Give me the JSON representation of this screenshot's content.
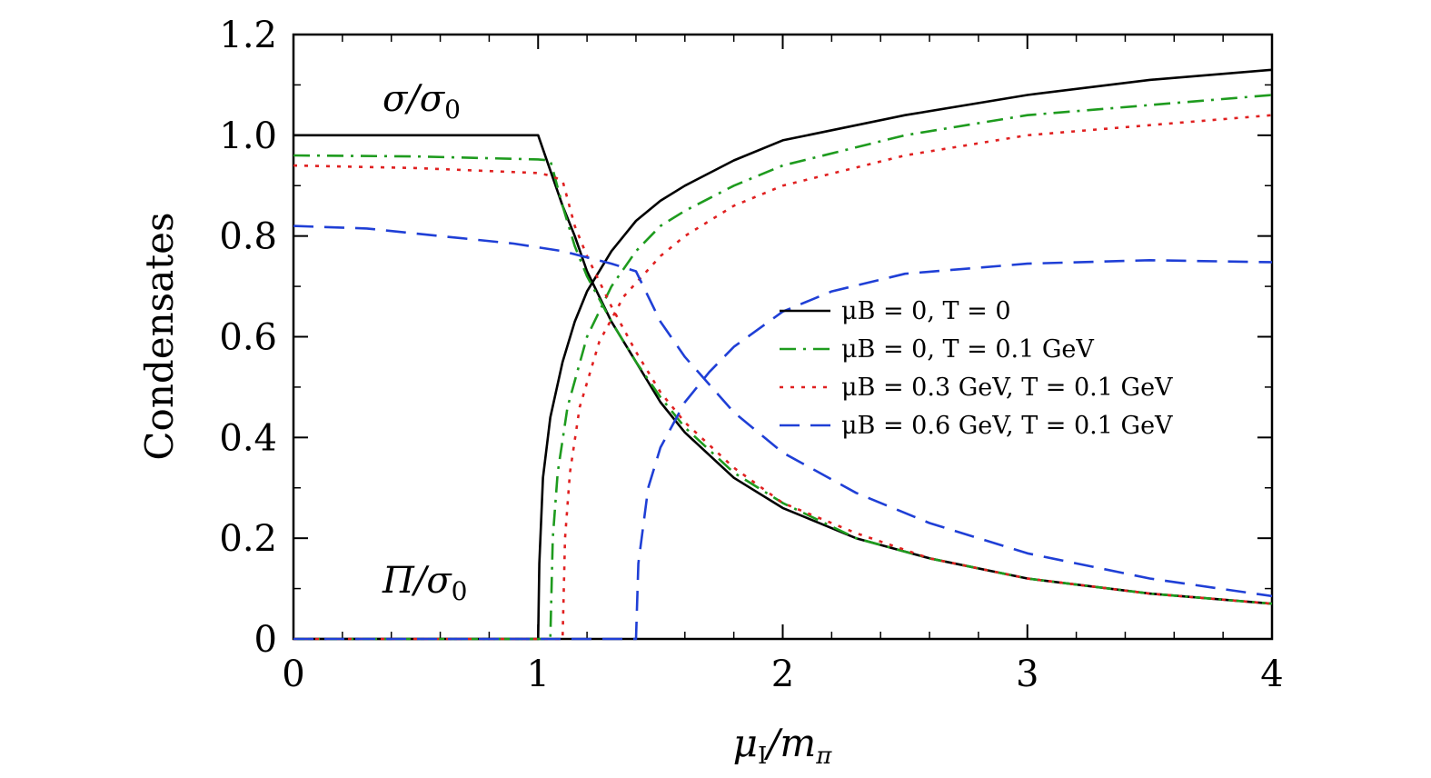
{
  "chart_data": {
    "type": "line",
    "xlabel": "μI/mπ",
    "ylabel": "Condensates",
    "xlim": [
      0,
      4
    ],
    "ylim": [
      0,
      1.2
    ],
    "x_ticks": [
      0,
      1,
      2,
      3,
      4
    ],
    "x_tick_labels": [
      "0",
      "1",
      "2",
      "3",
      "4"
    ],
    "y_ticks": [
      0,
      0.2,
      0.4,
      0.6,
      0.8,
      1.0,
      1.2
    ],
    "y_tick_labels": [
      "0",
      "0.2",
      "0.4",
      "0.6",
      "0.8",
      "1.0",
      "1.2"
    ],
    "grid": false,
    "legend_position": "center-right",
    "annotations": [
      {
        "text": "σ/σ0",
        "x": 0.37,
        "y": 1.06
      },
      {
        "text": "Π/σ0",
        "x": 0.37,
        "y": 0.07
      }
    ],
    "series": [
      {
        "name": "μB = 0, T = 0",
        "color": "#000000",
        "dash": "solid",
        "sigma": [
          [
            0,
            1.0
          ],
          [
            1.0,
            1.0
          ],
          [
            1.05,
            0.93
          ],
          [
            1.1,
            0.86
          ],
          [
            1.15,
            0.8
          ],
          [
            1.2,
            0.73
          ],
          [
            1.3,
            0.63
          ],
          [
            1.4,
            0.55
          ],
          [
            1.5,
            0.47
          ],
          [
            1.6,
            0.41
          ],
          [
            1.8,
            0.32
          ],
          [
            2.0,
            0.26
          ],
          [
            2.3,
            0.2
          ],
          [
            2.6,
            0.16
          ],
          [
            3.0,
            0.12
          ],
          [
            3.5,
            0.09
          ],
          [
            4.0,
            0.07
          ]
        ],
        "pi": [
          [
            0,
            0
          ],
          [
            1.0,
            0
          ],
          [
            1.005,
            0.15
          ],
          [
            1.02,
            0.32
          ],
          [
            1.05,
            0.44
          ],
          [
            1.1,
            0.55
          ],
          [
            1.15,
            0.63
          ],
          [
            1.2,
            0.69
          ],
          [
            1.3,
            0.77
          ],
          [
            1.4,
            0.83
          ],
          [
            1.5,
            0.87
          ],
          [
            1.6,
            0.9
          ],
          [
            1.8,
            0.95
          ],
          [
            2.0,
            0.99
          ],
          [
            2.5,
            1.04
          ],
          [
            3.0,
            1.08
          ],
          [
            3.5,
            1.11
          ],
          [
            4.0,
            1.13
          ]
        ]
      },
      {
        "name": "μB = 0, T = 0.1 GeV",
        "color": "#1e9b1e",
        "dash": "dashdot",
        "sigma": [
          [
            0,
            0.96
          ],
          [
            0.5,
            0.958
          ],
          [
            1.0,
            0.952
          ],
          [
            1.05,
            0.95
          ],
          [
            1.1,
            0.86
          ],
          [
            1.15,
            0.78
          ],
          [
            1.2,
            0.72
          ],
          [
            1.3,
            0.63
          ],
          [
            1.4,
            0.55
          ],
          [
            1.5,
            0.48
          ],
          [
            1.6,
            0.42
          ],
          [
            1.8,
            0.33
          ],
          [
            2.0,
            0.27
          ],
          [
            2.3,
            0.2
          ],
          [
            2.6,
            0.16
          ],
          [
            3.0,
            0.12
          ],
          [
            3.5,
            0.09
          ],
          [
            4.0,
            0.07
          ]
        ],
        "pi": [
          [
            0,
            0
          ],
          [
            1.05,
            0
          ],
          [
            1.06,
            0.2
          ],
          [
            1.08,
            0.33
          ],
          [
            1.12,
            0.46
          ],
          [
            1.2,
            0.6
          ],
          [
            1.3,
            0.7
          ],
          [
            1.4,
            0.77
          ],
          [
            1.5,
            0.82
          ],
          [
            1.6,
            0.85
          ],
          [
            1.8,
            0.9
          ],
          [
            2.0,
            0.94
          ],
          [
            2.5,
            1.0
          ],
          [
            3.0,
            1.04
          ],
          [
            3.5,
            1.06
          ],
          [
            4.0,
            1.08
          ]
        ]
      },
      {
        "name": "μB = 0.3 GeV, T = 0.1 GeV",
        "color": "#e02020",
        "dash": "dotted",
        "sigma": [
          [
            0,
            0.94
          ],
          [
            0.5,
            0.935
          ],
          [
            1.0,
            0.925
          ],
          [
            1.05,
            0.92
          ],
          [
            1.1,
            0.91
          ],
          [
            1.15,
            0.82
          ],
          [
            1.2,
            0.76
          ],
          [
            1.3,
            0.66
          ],
          [
            1.4,
            0.57
          ],
          [
            1.5,
            0.49
          ],
          [
            1.6,
            0.43
          ],
          [
            1.8,
            0.34
          ],
          [
            2.0,
            0.27
          ],
          [
            2.3,
            0.21
          ],
          [
            2.6,
            0.16
          ],
          [
            3.0,
            0.12
          ],
          [
            3.5,
            0.09
          ],
          [
            4.0,
            0.07
          ]
        ],
        "pi": [
          [
            0,
            0
          ],
          [
            1.1,
            0
          ],
          [
            1.11,
            0.2
          ],
          [
            1.13,
            0.33
          ],
          [
            1.17,
            0.46
          ],
          [
            1.25,
            0.59
          ],
          [
            1.35,
            0.68
          ],
          [
            1.5,
            0.76
          ],
          [
            1.6,
            0.8
          ],
          [
            1.8,
            0.86
          ],
          [
            2.0,
            0.9
          ],
          [
            2.5,
            0.96
          ],
          [
            3.0,
            1.0
          ],
          [
            3.5,
            1.02
          ],
          [
            4.0,
            1.04
          ]
        ]
      },
      {
        "name": "μB = 0.6 GeV, T = 0.1 GeV",
        "color": "#1f3fd6",
        "dash": "dashed",
        "sigma": [
          [
            0,
            0.82
          ],
          [
            0.3,
            0.815
          ],
          [
            0.6,
            0.8
          ],
          [
            0.9,
            0.785
          ],
          [
            1.1,
            0.77
          ],
          [
            1.3,
            0.745
          ],
          [
            1.4,
            0.73
          ],
          [
            1.5,
            0.63
          ],
          [
            1.6,
            0.56
          ],
          [
            1.8,
            0.45
          ],
          [
            2.0,
            0.37
          ],
          [
            2.3,
            0.29
          ],
          [
            2.6,
            0.23
          ],
          [
            3.0,
            0.17
          ],
          [
            3.5,
            0.12
          ],
          [
            4.0,
            0.085
          ]
        ],
        "pi": [
          [
            0,
            0
          ],
          [
            1.4,
            0
          ],
          [
            1.41,
            0.15
          ],
          [
            1.45,
            0.3
          ],
          [
            1.5,
            0.38
          ],
          [
            1.6,
            0.47
          ],
          [
            1.7,
            0.53
          ],
          [
            1.8,
            0.58
          ],
          [
            2.0,
            0.65
          ],
          [
            2.2,
            0.69
          ],
          [
            2.5,
            0.725
          ],
          [
            3.0,
            0.745
          ],
          [
            3.5,
            0.752
          ],
          [
            4.0,
            0.748
          ]
        ]
      }
    ]
  }
}
